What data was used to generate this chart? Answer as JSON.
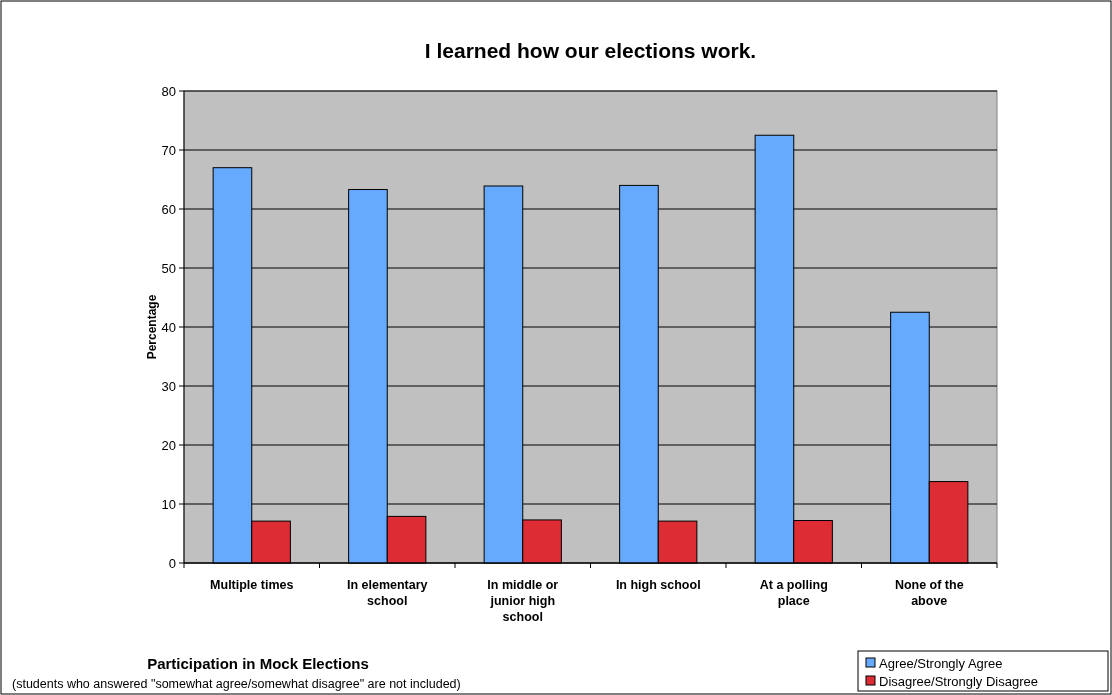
{
  "chart_data": {
    "type": "bar",
    "title": "I learned how our elections work.",
    "xlabel": "Participation in Mock Elections",
    "ylabel": "Percentage",
    "annotations": [
      "(students who answered \"somewhat agree/somewhat disagree\" are not included)"
    ],
    "categories": [
      "Multiple times",
      "In elementary school",
      "In middle or junior high school",
      "In high school",
      "At a polling place",
      "None of the above"
    ],
    "series": [
      {
        "name": "Agree/Strongly Agree",
        "color": "#66aaff",
        "values": [
          67,
          63.3,
          63.9,
          64,
          72.5,
          42.5
        ]
      },
      {
        "name": "Disagree/Strongly Disagree",
        "color": "#dd2c33",
        "values": [
          7.1,
          7.9,
          7.3,
          7.1,
          7.2,
          13.8
        ]
      }
    ],
    "ylim": [
      0,
      80
    ],
    "yticks": [
      0,
      10,
      20,
      30,
      40,
      50,
      60,
      70,
      80
    ],
    "grid": "y",
    "legend": "bottom right"
  }
}
